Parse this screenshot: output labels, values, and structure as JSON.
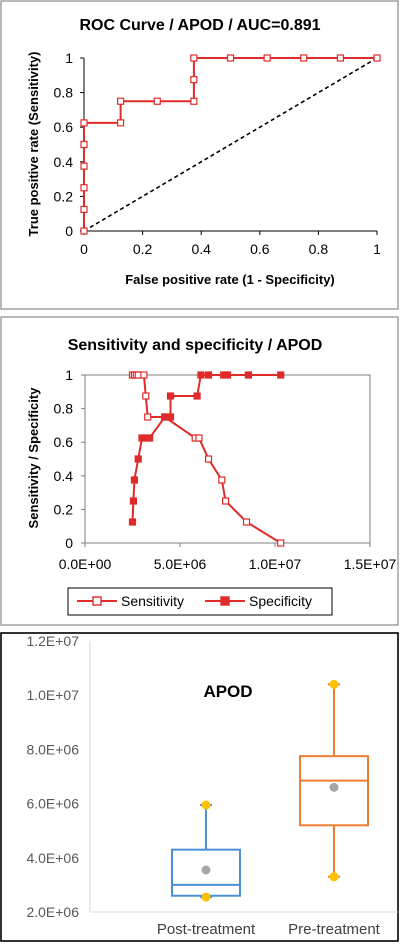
{
  "chart_data": [
    {
      "type": "line",
      "title": "ROC Curve / APOD / AUC=0.891",
      "xlabel": "False positive rate (1 - Specificity)",
      "ylabel": "True positive rate (Sensitivity)",
      "xlim": [
        0,
        1
      ],
      "ylim": [
        0,
        1
      ],
      "xticks": [
        "0",
        "0.2",
        "0.4",
        "0.6",
        "0.8",
        "1"
      ],
      "yticks": [
        "0",
        "0.2",
        "0.4",
        "0.6",
        "0.8",
        "1"
      ],
      "grid": false,
      "series": [
        {
          "marker": "open-square",
          "color": "#e02b2b",
          "x": [
            0,
            0,
            0,
            0,
            0,
            0,
            0.125,
            0.125,
            0.25,
            0.375,
            0.375,
            0.375,
            0.5,
            0.625,
            0.75,
            0.875,
            1
          ],
          "y": [
            0,
            0.125,
            0.25,
            0.375,
            0.5,
            0.625,
            0.625,
            0.75,
            0.75,
            0.75,
            0.875,
            1,
            1,
            1,
            1,
            1,
            1
          ]
        }
      ],
      "reference_line": {
        "style": "dashed",
        "color": "#000000",
        "x": [
          0,
          1
        ],
        "y": [
          0,
          1
        ]
      }
    },
    {
      "type": "line",
      "title": "Sensitivity and specificity / APOD",
      "xlabel": "",
      "ylabel": "Sensitivity / Specificity",
      "xlim": [
        0,
        15000000
      ],
      "ylim": [
        0,
        1
      ],
      "xticks": [
        "0.0E+00",
        "5.0E+06",
        "1.0E+07",
        "1.5E+07"
      ],
      "yticks": [
        "0",
        "0.2",
        "0.4",
        "0.6",
        "0.8",
        "1"
      ],
      "legend": "bottom",
      "series": [
        {
          "name": "Sensitivity",
          "marker": "open-square",
          "color": "#e02b2b",
          "x": [
            2500000,
            2600000,
            2700000,
            2800000,
            3100000,
            3200000,
            3300000,
            4200000,
            5800000,
            6000000,
            6500000,
            7200000,
            7400000,
            8500000,
            10300000
          ],
          "y": [
            1,
            1,
            1,
            1,
            1,
            0.875,
            0.75,
            0.75,
            0.625,
            0.625,
            0.5,
            0.375,
            0.25,
            0.125,
            0
          ]
        },
        {
          "name": "Specificity",
          "marker": "filled-square",
          "color": "#e02b2b",
          "x": [
            2500000,
            2550000,
            2600000,
            2800000,
            3000000,
            3200000,
            3400000,
            4200000,
            4500000,
            4500000,
            5900000,
            6100000,
            6500000,
            7300000,
            7500000,
            8600000,
            10300000
          ],
          "y": [
            0.125,
            0.25,
            0.375,
            0.5,
            0.625,
            0.625,
            0.625,
            0.75,
            0.75,
            0.875,
            0.875,
            1,
            1,
            1,
            1,
            1,
            1
          ]
        }
      ]
    },
    {
      "type": "box",
      "title": "APOD",
      "categories": [
        "Post-treatment",
        "Pre-treatment"
      ],
      "ylim": [
        2000000,
        12000000
      ],
      "yticks": [
        "2.0E+06",
        "4.0E+06",
        "6.0E+06",
        "8.0E+06",
        "1.0E+07",
        "1.2E+07"
      ],
      "series": [
        {
          "name": "Post-treatment",
          "color": "#4a90d9",
          "min": 2550000,
          "q1": 2600000,
          "median": 3000000,
          "q3": 4300000,
          "max": 5950000,
          "mean": 3550000
        },
        {
          "name": "Pre-treatment",
          "color": "#ed7d31",
          "min": 3300000,
          "q1": 5200000,
          "median": 6850000,
          "q3": 7750000,
          "max": 10400000,
          "mean": 6600000
        }
      ],
      "outlier_color": "#ffc000",
      "mean_color": "#a6a6a6"
    }
  ]
}
